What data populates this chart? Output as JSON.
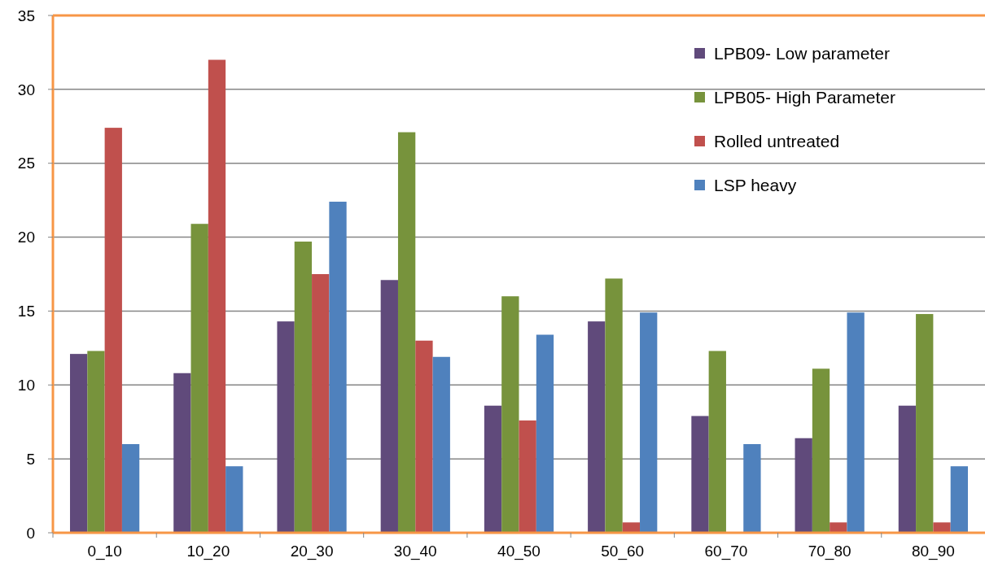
{
  "chart_data": {
    "type": "bar",
    "categories": [
      "0_10",
      "10_20",
      "20_30",
      "30_40",
      "40_50",
      "50_60",
      "60_70",
      "70_80",
      "80_90"
    ],
    "series": [
      {
        "name": "LPB09- Low parameter",
        "color": "#604a7b",
        "values": [
          12.1,
          10.8,
          14.3,
          17.1,
          8.6,
          14.3,
          7.9,
          6.4,
          8.6
        ]
      },
      {
        "name": "LPB05- High Parameter",
        "color": "#77933c",
        "values": [
          12.3,
          20.9,
          19.7,
          27.1,
          16.0,
          17.2,
          12.3,
          11.1,
          14.8
        ]
      },
      {
        "name": "Rolled untreated",
        "color": "#c0504d",
        "values": [
          27.4,
          32.0,
          17.5,
          13.0,
          7.6,
          0.7,
          0,
          0.7,
          0.7
        ]
      },
      {
        "name": "LSP heavy",
        "color": "#4f81bd",
        "values": [
          6.0,
          4.5,
          22.4,
          11.9,
          13.4,
          14.9,
          6.0,
          14.9,
          4.5
        ]
      }
    ],
    "ylim": [
      0,
      35
    ],
    "yticks": [
      0,
      5,
      10,
      15,
      20,
      25,
      30,
      35
    ],
    "grid": "y",
    "legend": "top right"
  }
}
